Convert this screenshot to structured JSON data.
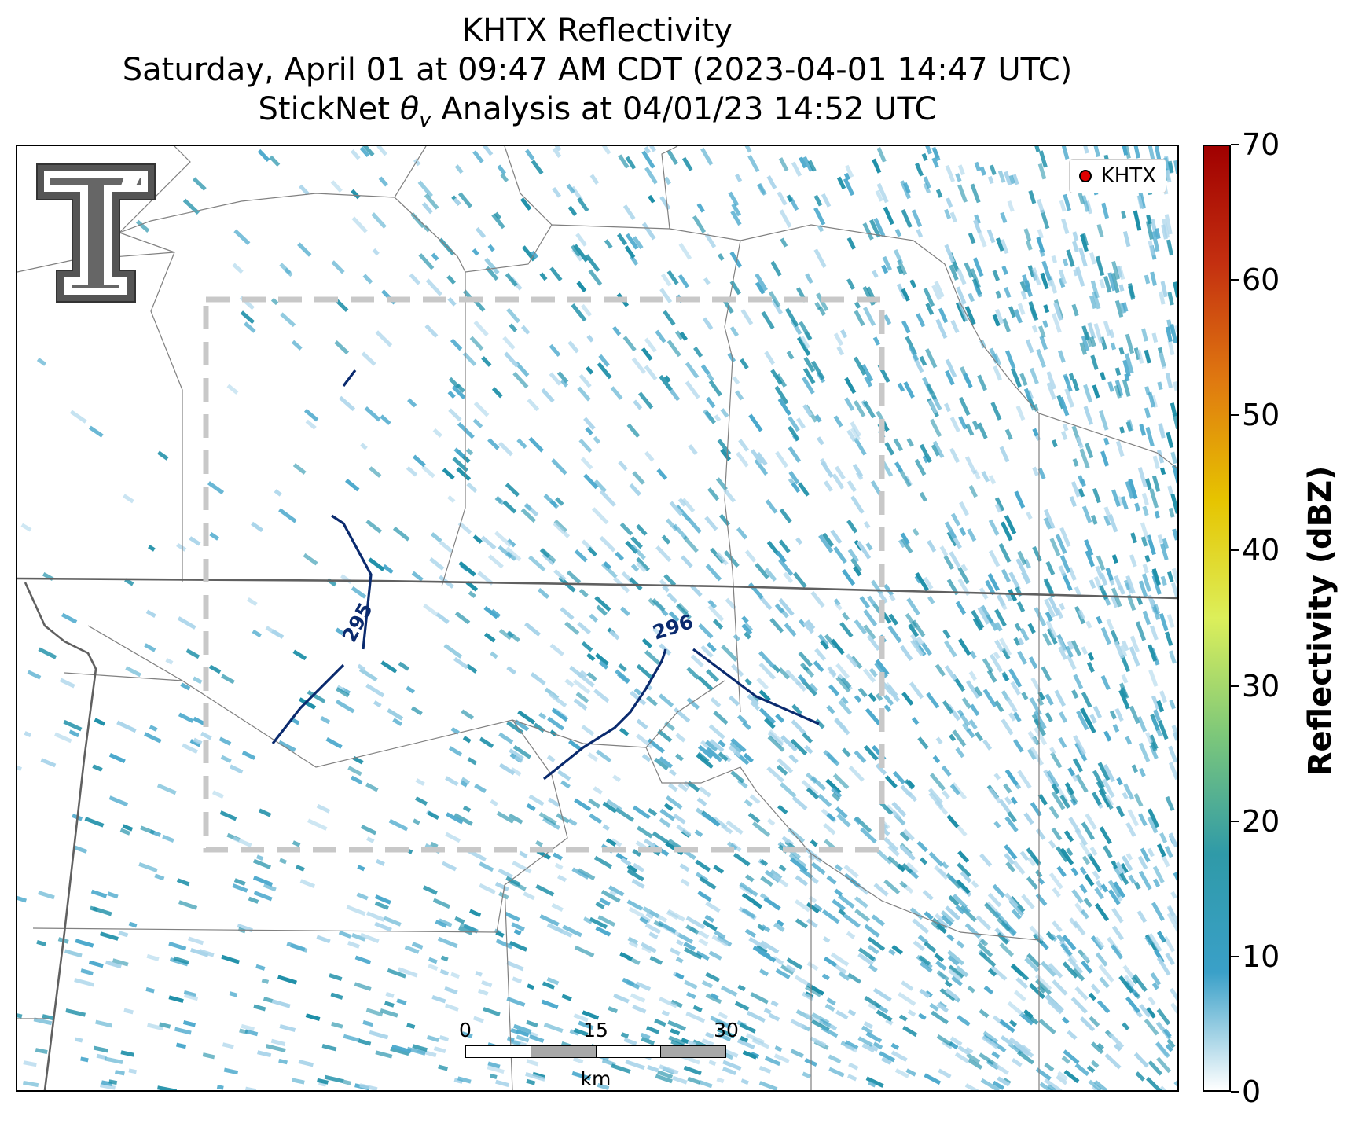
{
  "title_line1": "KHTX Reflectivity",
  "title_line2": "Saturday, April 01 at 09:47 AM CDT (2023-04-01 14:47 UTC)",
  "title_line3_prefix": "StickNet ",
  "title_line3_symbol": "θ",
  "title_line3_sub": "v",
  "title_line3_suffix": " Analysis at 04/01/23 14:52 UTC",
  "legend": {
    "label": "KHTX",
    "marker_color": "#e00000"
  },
  "contours": [
    {
      "label": "295"
    },
    {
      "label": "296"
    }
  ],
  "contour_color": "#0a2a6e",
  "colorbar": {
    "title": "Reflectivity (dBZ)",
    "min": 0,
    "max": 70,
    "ticks": [
      "0",
      "10",
      "20",
      "30",
      "40",
      "50",
      "60",
      "70"
    ],
    "stops": [
      "#ffffff",
      "#3aa0c8",
      "#2f9aa8",
      "#7cc77a",
      "#dcef5a",
      "#e6c400",
      "#e07a10",
      "#c43010",
      "#a00000"
    ]
  },
  "scalebar": {
    "labels": [
      "0",
      "15",
      "30"
    ],
    "unit": "km"
  },
  "colors": {
    "echo_light": "#a9d4ea",
    "echo_mid": "#4aa8cc",
    "echo_dark": "#1e8fa8",
    "dashed_box": "#c8c8c8",
    "county_line": "#808080",
    "state_line": "#606060"
  }
}
